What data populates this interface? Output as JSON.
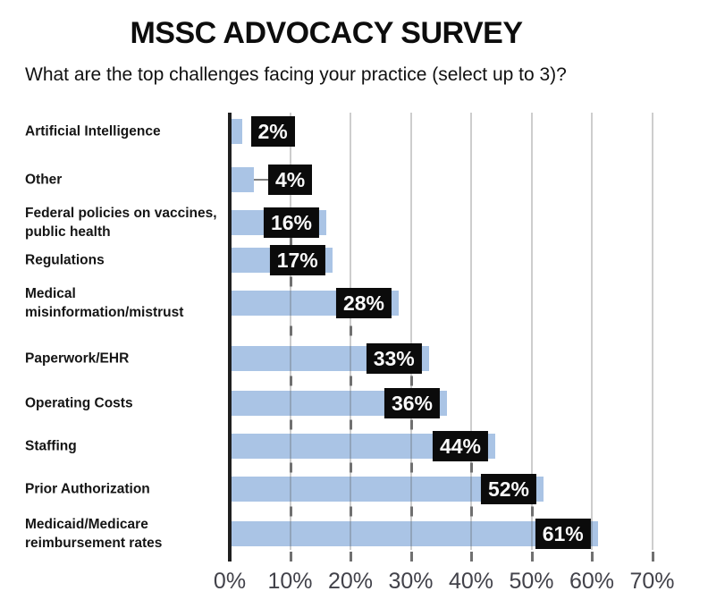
{
  "title": "MSSC ADVOCACY SURVEY",
  "subtitle": "What are the top challenges facing your practice (select up to 3)?",
  "chart_data": {
    "type": "bar",
    "orientation": "horizontal",
    "title": "MSSC ADVOCACY SURVEY",
    "subtitle": "What are the top challenges facing your practice (select up to 3)?",
    "categories": [
      "Artificial Intelligence",
      "Other",
      "Federal policies on vaccines, public health",
      "Regulations",
      "Medical misinformation/mistrust",
      "Paperwork/EHR",
      "Operating Costs",
      "Staffing",
      "Prior Authorization",
      "Medicaid/Medicare reimbursement rates"
    ],
    "values": [
      2,
      4,
      16,
      17,
      28,
      33,
      36,
      44,
      52,
      61
    ],
    "value_labels": [
      "2%",
      "4%",
      "16%",
      "17%",
      "28%",
      "33%",
      "36%",
      "44%",
      "52%",
      "61%"
    ],
    "x_ticks": [
      0,
      10,
      20,
      30,
      40,
      50,
      60,
      70
    ],
    "x_tick_labels": [
      "0%",
      "10%",
      "20%",
      "30%",
      "40%",
      "50%",
      "60%",
      "70%"
    ],
    "xlim": [
      0,
      75
    ],
    "grid": "vertical-gridlines",
    "legend": "none",
    "colors": {
      "bar": "#aac4e5",
      "value_label_bg": "#0b0b0b",
      "value_label_text": "#fafafa",
      "axis_line": "#1f1f1f",
      "gridline": "rgba(90,90,90,0.30)",
      "tick_dash": "#707070",
      "connector": "#7f7f7f",
      "category_text": "#151515",
      "tick_text": "#42424a"
    }
  }
}
